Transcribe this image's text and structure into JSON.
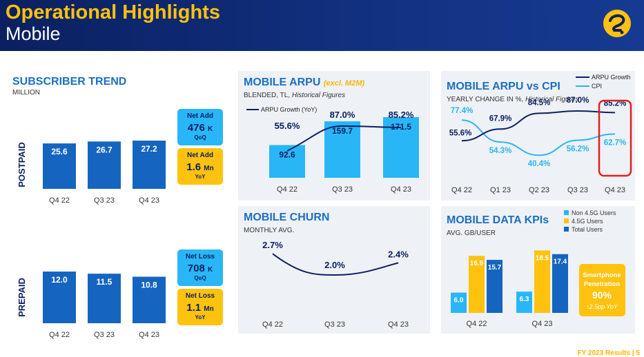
{
  "header": {
    "title": "Operational Highlights",
    "subtitle": "Mobile"
  },
  "subscriber": {
    "title": "SUBSCRIBER TREND",
    "sub": "MILLION",
    "postpaid_label": "POSTPAID",
    "prepaid_label": "PREPAID",
    "categories": [
      "Q4 22",
      "Q3 23",
      "Q4 23"
    ],
    "postpaid_values": [
      25.6,
      26.7,
      27.2
    ],
    "prepaid_values": [
      12.0,
      11.5,
      10.8
    ],
    "postpaid_value_labels": [
      "25.6",
      "26.7",
      "27.2"
    ],
    "prepaid_value_labels": [
      "12.0",
      "11.5",
      "10.8"
    ],
    "post_box1": {
      "label": "Net Add",
      "value": "476",
      "unit": "K",
      "period": "QoQ"
    },
    "post_box2": {
      "label": "Net Add",
      "value": "1.6",
      "unit": "Mn",
      "period": "YoY"
    },
    "pre_box1": {
      "label": "Net Loss",
      "value": "708",
      "unit": "K",
      "period": "QoQ"
    },
    "pre_box2": {
      "label": "Net Loss",
      "value": "1.1",
      "unit": "Mn",
      "period": "YoY"
    }
  },
  "arpu": {
    "title": "MOBILE ARPU",
    "title_note": "(excl. M2M)",
    "sub": "BLENDED, TL,",
    "sub_italic": "Historical Figures",
    "legend": "ARPU Growth (YoY)",
    "categories": [
      "Q4 22",
      "Q3 23",
      "Q4 23"
    ],
    "bar_values": [
      92.6,
      159.7,
      171.5
    ],
    "bar_labels": [
      "92.6",
      "159.7",
      "171.5"
    ],
    "growth_values": [
      55.6,
      87.0,
      85.2
    ],
    "growth_labels": [
      "55.6%",
      "87.0%",
      "85.2%"
    ]
  },
  "arpu_cpi": {
    "title": "MOBILE ARPU vs CPI",
    "sub": "YEARLY CHANGE IN %,",
    "sub_italic": "Historical Figures",
    "legend_arpu": "ARPU Growth",
    "legend_cpi": "CPI",
    "categories": [
      "Q4 22",
      "Q1 23",
      "Q2 23",
      "Q3 23",
      "Q4 23"
    ],
    "arpu_values": [
      55.6,
      67.9,
      84.5,
      87.0,
      85.2
    ],
    "arpu_labels": [
      "55.6%",
      "67.9%",
      "84.5%",
      "87.0%",
      "85.2%"
    ],
    "cpi_values": [
      77.4,
      54.3,
      40.4,
      56.2,
      62.7
    ],
    "cpi_labels": [
      "77.4%",
      "54.3%",
      "40.4%",
      "56.2%",
      "62.7%"
    ],
    "highlight_color": "#e02020"
  },
  "churn": {
    "title": "MOBILE CHURN",
    "sub": "MONTHLY AVG.",
    "categories": [
      "Q4 22",
      "Q3 23",
      "Q4 23"
    ],
    "values": [
      2.7,
      2.0,
      2.4
    ],
    "labels": [
      "2.7%",
      "2.0%",
      "2.4%"
    ]
  },
  "data_kpi": {
    "title": "MOBILE DATA KPIs",
    "sub": "AVG. GB/USER",
    "legend": [
      "Non 4.5G Users",
      "4.5G Users",
      "Total Users"
    ],
    "categories": [
      "Q4 22",
      "Q4 23"
    ],
    "non45": [
      6.0,
      6.3
    ],
    "g45": [
      16.9,
      18.5
    ],
    "total": [
      15.7,
      17.4
    ],
    "non45_labels": [
      "6.0",
      "6.3"
    ],
    "g45_labels": [
      "16.9",
      "18.5"
    ],
    "total_labels": [
      "15.7",
      "17.4"
    ],
    "smartphone_label_1": "Smartphone",
    "smartphone_label_2": "Penetration",
    "smartphone_value": "90%",
    "smartphone_change": "↑2.5pp YoY"
  },
  "footer": "FY 2023 Results | 5",
  "colors": {
    "navy": "#0a2060",
    "blue": "#1565c0",
    "cyan": "#29b6f6",
    "yellow": "#ffc20e",
    "title_blue": "#1a6fc2"
  },
  "chart_data": [
    {
      "type": "bar",
      "title": "SUBSCRIBER TREND",
      "categories": [
        "Q4 22",
        "Q3 23",
        "Q4 23"
      ],
      "series": [
        {
          "name": "POSTPAID",
          "values": [
            25.6,
            26.7,
            27.2
          ]
        },
        {
          "name": "PREPAID",
          "values": [
            12.0,
            11.5,
            10.8
          ]
        }
      ]
    },
    {
      "type": "bar",
      "title": "MOBILE ARPU",
      "categories": [
        "Q4 22",
        "Q3 23",
        "Q4 23"
      ],
      "series": [
        {
          "values": [
            92.6,
            159.7,
            171.5
          ]
        },
        {
          "name": "ARPU Growth (YoY)",
          "values": [
            55.6,
            87.0,
            85.2
          ]
        }
      ]
    },
    {
      "type": "line",
      "title": "MOBILE ARPU vs CPI",
      "categories": [
        "Q4 22",
        "Q1 23",
        "Q2 23",
        "Q3 23",
        "Q4 23"
      ],
      "series": [
        {
          "name": "ARPU Growth",
          "values": [
            55.6,
            67.9,
            84.5,
            87.0,
            85.2
          ]
        },
        {
          "name": "CPI",
          "values": [
            77.4,
            54.3,
            40.4,
            56.2,
            62.7
          ]
        }
      ]
    },
    {
      "type": "line",
      "title": "MOBILE CHURN",
      "categories": [
        "Q4 22",
        "Q3 23",
        "Q4 23"
      ],
      "values": [
        2.7,
        2.0,
        2.4
      ]
    },
    {
      "type": "bar",
      "title": "MOBILE DATA KPIs",
      "categories": [
        "Q4 22",
        "Q4 23"
      ],
      "series": [
        {
          "name": "Non 4.5G Users",
          "values": [
            6.0,
            6.3
          ]
        },
        {
          "name": "4.5G Users",
          "values": [
            16.9,
            18.5
          ]
        },
        {
          "name": "Total Users",
          "values": [
            15.7,
            17.4
          ]
        }
      ]
    }
  ]
}
